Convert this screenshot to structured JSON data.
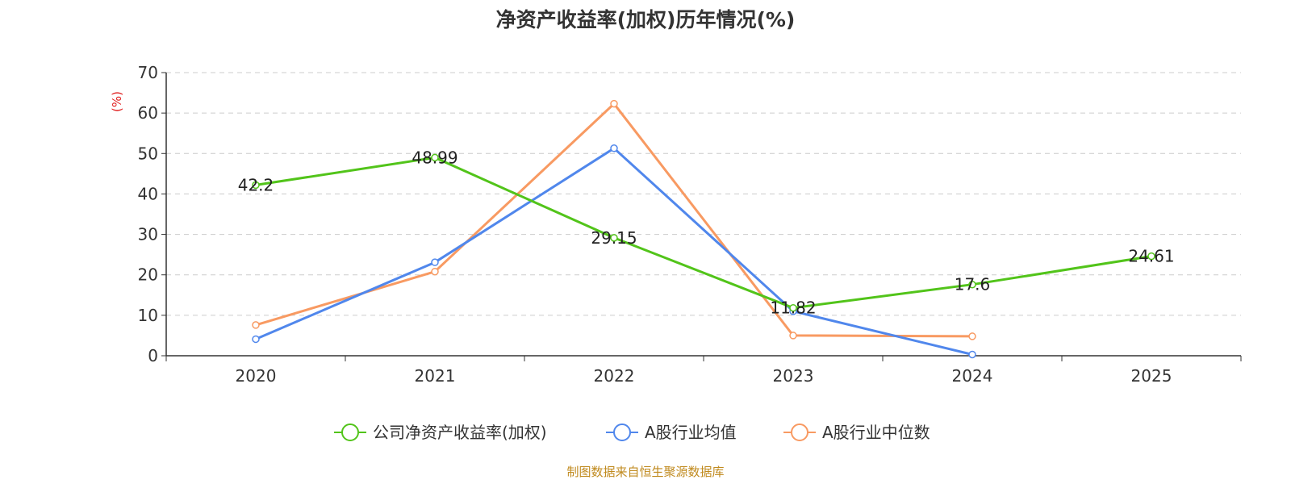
{
  "chart_data": {
    "type": "line",
    "title": "净资产收益率(加权)历年情况(%)",
    "ylabel": "(%)",
    "ylim": [
      0,
      70
    ],
    "yticks": [
      0,
      10,
      20,
      30,
      40,
      50,
      60,
      70
    ],
    "categories": [
      "2020",
      "2021",
      "2022",
      "2023",
      "2024",
      "2025"
    ],
    "grid": true,
    "legend_position": "bottom",
    "series": [
      {
        "name": "公司净资产收益率(加权)",
        "color": "#52c41a",
        "values": [
          42.2,
          48.99,
          29.15,
          11.82,
          17.6,
          24.61
        ],
        "labels": [
          "42.2",
          "48.99",
          "29.15",
          "11.82",
          "17.6",
          "24.61"
        ]
      },
      {
        "name": "A股行业均值",
        "color": "#5087ec",
        "values": [
          4.1,
          23.1,
          51.3,
          11.0,
          0.3,
          null
        ]
      },
      {
        "name": "A股行业中位数",
        "color": "#f89a62",
        "values": [
          7.6,
          20.8,
          62.3,
          5.0,
          4.8,
          null
        ]
      }
    ],
    "source": "制图数据来自恒生聚源数据库",
    "colors": {
      "axis": "#333333",
      "grid": "#cccccc",
      "unit": "#e02020",
      "source": "#c08a1e"
    }
  }
}
